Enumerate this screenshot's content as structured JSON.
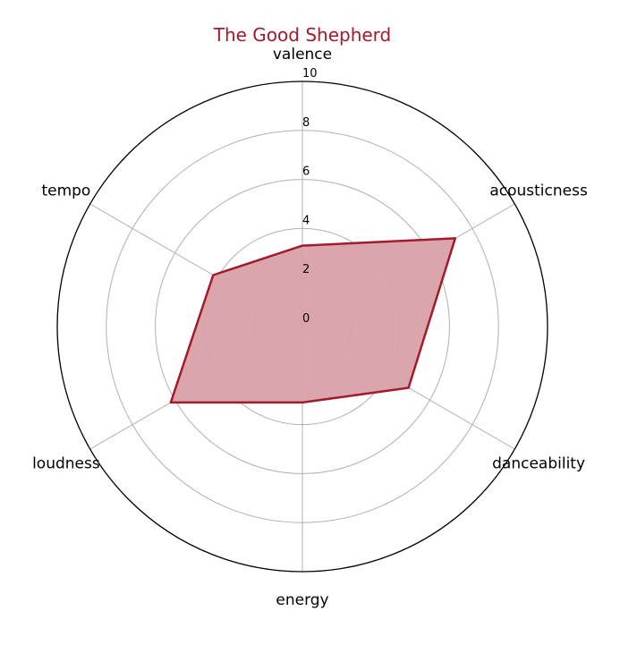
{
  "chart_data": {
    "type": "radar",
    "title": "The Good Shepherd",
    "axes": [
      "valence",
      "acousticness",
      "danceability",
      "energy",
      "loudness",
      "tempo"
    ],
    "series": [
      {
        "values": [
          3.3,
          7.2,
          5.0,
          3.1,
          6.2,
          4.2
        ]
      }
    ],
    "r_ticks": [
      0,
      2,
      4,
      6,
      8,
      10
    ],
    "r_range": [
      0,
      10
    ],
    "grid": true,
    "colors": {
      "line": "#a31a2a",
      "fill": "#d9a1a7",
      "title": "#a31a2a",
      "grid": "#b0b0b0",
      "frame": "#000000"
    }
  }
}
